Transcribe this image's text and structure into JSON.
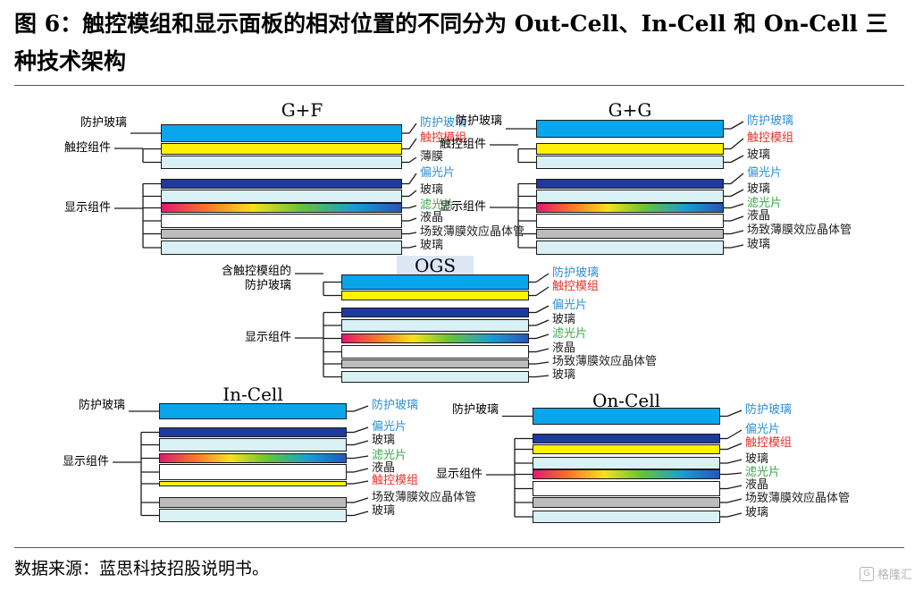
{
  "figure": {
    "title": "图 6：触控模组和显示面板的相对位置的不同分为 Out-Cell、In-Cell 和 On-Cell 三种技术架构",
    "source": "数据来源：蓝思科技招股说明书。",
    "watermark": "格隆汇"
  },
  "colors": {
    "cover": "#0aa6ec",
    "sensor": "#fff200",
    "film": "#d9f1f4",
    "polarizer": "#1e3b9c",
    "glass": "#d9f1f4",
    "lc": "#ffffff",
    "tft": "#bcbcbc",
    "label_blue": "#2c8fd6",
    "label_red": "#e8322e",
    "label_green": "#3aa84a",
    "label_dark": "#222222"
  },
  "diagrams": {
    "gf": {
      "title": "G+F",
      "group_cover": "防护玻璃",
      "group_touch": "触控组件",
      "group_display": "显示组件",
      "layers": [
        "防护玻璃",
        "触控模组",
        "薄膜",
        "偏光片",
        "玻璃",
        "滤光片",
        "液晶",
        "场致薄膜效应晶体管",
        "玻璃"
      ]
    },
    "gg": {
      "title": "G+G",
      "group_cover": "防护玻璃",
      "group_touch": "触控组件",
      "group_display": "显示组件",
      "layers": [
        "防护玻璃",
        "触控模组",
        "玻璃",
        "偏光片",
        "玻璃",
        "滤光片",
        "液晶",
        "场致薄膜效应晶体管",
        "玻璃"
      ]
    },
    "ogs": {
      "title": "OGS",
      "group_cover": "含触控模组的防护玻璃",
      "group_cover_lines": [
        "含触控模组的",
        "防护玻璃"
      ],
      "group_display": "显示组件",
      "layers": [
        "防护玻璃",
        "触控模组",
        "偏光片",
        "玻璃",
        "滤光片",
        "液晶",
        "场致薄膜效应晶体管",
        "玻璃"
      ]
    },
    "incell": {
      "title": "In-Cell",
      "group_cover": "防护玻璃",
      "group_display": "显示组件",
      "layers": [
        "防护玻璃",
        "偏光片",
        "玻璃",
        "滤光片",
        "液晶",
        "触控模组",
        "场致薄膜效应晶体管",
        "玻璃"
      ]
    },
    "oncell": {
      "title": "On-Cell",
      "group_cover": "防护玻璃",
      "group_display": "显示组件",
      "layers": [
        "防护玻璃",
        "偏光片",
        "触控模组",
        "玻璃",
        "滤光片",
        "液晶",
        "场致薄膜效应晶体管",
        "玻璃"
      ]
    }
  }
}
